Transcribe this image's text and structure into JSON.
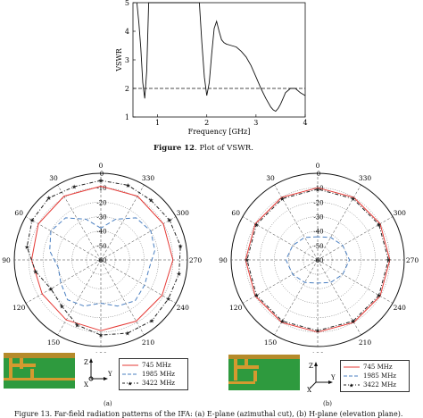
{
  "fig12": {
    "caption_label": "Figure 12",
    "caption_text": ". Plot of VSWR.",
    "chart_data": {
      "type": "line",
      "xlabel": "Frequency [GHz]",
      "ylabel": "VSWR",
      "xlim": [
        0.5,
        4
      ],
      "ylim": [
        1,
        5
      ],
      "xticks": [
        "1",
        "2",
        "3",
        "4"
      ],
      "yticks": [
        "1",
        "2",
        "3",
        "4",
        "5"
      ],
      "reference_line": {
        "y": 2,
        "style": "dashed"
      },
      "series": [
        {
          "x": [
            0.58,
            0.62,
            0.66,
            0.7,
            0.74,
            0.78,
            0.82,
            0.86,
            0.9,
            0.95,
            1.0,
            1.1,
            1.2,
            1.3,
            1.4,
            1.5,
            1.6,
            1.7,
            1.8,
            1.85,
            1.9,
            1.95,
            2.0,
            2.05,
            2.1,
            2.15,
            2.2,
            2.25,
            2.3,
            2.35,
            2.4,
            2.5,
            2.6,
            2.7,
            2.8,
            2.9,
            3.0,
            3.1,
            3.2,
            3.3,
            3.35,
            3.4,
            3.45,
            3.5,
            3.55,
            3.6,
            3.7,
            3.8,
            3.9,
            4.0
          ],
          "y": [
            5.0,
            4.3,
            3.4,
            2.2,
            1.65,
            2.6,
            5.0,
            5.0,
            5.0,
            5.0,
            5.0,
            5.0,
            5.0,
            5.0,
            5.0,
            5.0,
            5.0,
            5.0,
            5.0,
            5.0,
            3.6,
            2.4,
            1.75,
            2.2,
            3.2,
            4.1,
            4.35,
            4.0,
            3.7,
            3.6,
            3.55,
            3.5,
            3.45,
            3.3,
            3.1,
            2.8,
            2.4,
            2.0,
            1.65,
            1.35,
            1.25,
            1.2,
            1.3,
            1.45,
            1.65,
            1.85,
            2.0,
            2.0,
            1.85,
            1.75
          ]
        }
      ]
    }
  },
  "fig13": {
    "caption": "Figure 13. Far-field radiation patterns of the IFA: (a) E-plane (azimuthal cut), (b) H-plane (elevation plane).",
    "panels": [
      {
        "label": "(a)",
        "chart_data": {
          "type": "line",
          "subtype": "polar",
          "angle_labels": [
            "0",
            "30",
            "60",
            "90",
            "120",
            "150",
            "180",
            "210",
            "240",
            "270",
            "300",
            "330"
          ],
          "radial_labels": [
            "0",
            "-10",
            "-20",
            "-30",
            "-40",
            "-50",
            "-60"
          ],
          "radial_range_db": [
            -60,
            0
          ],
          "series": [
            {
              "name": "745 MHz",
              "color": "#e53935",
              "style": "solid",
              "angles": [
                0,
                30,
                60,
                90,
                120,
                150,
                180,
                210,
                240,
                270,
                300,
                330
              ],
              "values_db": [
                -9,
                -9,
                -10,
                -12,
                -13,
                -12,
                -11,
                -11,
                -11,
                -10,
                -10,
                -9
              ]
            },
            {
              "name": "1985 MHz",
              "color": "#4a7fc1",
              "style": "dashed",
              "angles": [
                0,
                20,
                40,
                60,
                80,
                100,
                120,
                140,
                160,
                180,
                200,
                220,
                240,
                260,
                280,
                300,
                320,
                340
              ],
              "values_db": [
                -38,
                -30,
                -22,
                -20,
                -24,
                -30,
                -28,
                -24,
                -26,
                -30,
                -26,
                -23,
                -25,
                -26,
                -22,
                -20,
                -22,
                -30
              ]
            },
            {
              "name": "3422 MHz",
              "color": "#222222",
              "style": "dash-dot",
              "marker": "star",
              "angles": [
                0,
                20,
                40,
                60,
                80,
                100,
                120,
                140,
                160,
                180,
                200,
                220,
                240,
                260,
                280,
                300,
                320,
                340
              ],
              "values_db": [
                -5,
                -6,
                -4,
                -5,
                -8,
                -14,
                -20,
                -18,
                -12,
                -8,
                -6,
                -5,
                -6,
                -5,
                -4,
                -5,
                -6,
                -5
              ]
            }
          ]
        },
        "legend": [
          "745 MHz",
          "1985 MHz",
          "3422 MHz"
        ],
        "axes_icon": {
          "z": "Z",
          "y": "Y",
          "x": "X"
        }
      },
      {
        "label": "(b)",
        "chart_data": {
          "type": "line",
          "subtype": "polar",
          "angle_labels": [
            "0",
            "30",
            "60",
            "90",
            "120",
            "150",
            "180",
            "210",
            "240",
            "270",
            "300",
            "330"
          ],
          "radial_labels": [
            "0",
            "-10",
            "-20",
            "-30",
            "-40",
            "-50",
            "-60"
          ],
          "radial_range_db": [
            -60,
            0
          ],
          "series": [
            {
              "name": "745 MHz",
              "color": "#e53935",
              "style": "solid",
              "angles": [
                0,
                30,
                60,
                90,
                120,
                150,
                180,
                210,
                240,
                270,
                300,
                330
              ],
              "values_db": [
                -10,
                -10,
                -10,
                -10,
                -10,
                -10,
                -10,
                -10,
                -10,
                -10,
                -10,
                -10
              ]
            },
            {
              "name": "1985 MHz",
              "color": "#4a7fc1",
              "style": "dashed",
              "angles": [
                0,
                30,
                60,
                90,
                120,
                150,
                180,
                210,
                240,
                270,
                300,
                330
              ],
              "values_db": [
                -44,
                -42,
                -40,
                -38,
                -40,
                -42,
                -44,
                -42,
                -40,
                -38,
                -40,
                -42
              ]
            },
            {
              "name": "3422 MHz",
              "color": "#222222",
              "style": "dash-dot",
              "marker": "star",
              "angles": [
                0,
                30,
                60,
                90,
                120,
                150,
                180,
                210,
                240,
                270,
                300,
                330
              ],
              "values_db": [
                -11,
                -11,
                -11,
                -11,
                -11,
                -11,
                -11,
                -11,
                -11,
                -11,
                -11,
                -11
              ]
            }
          ]
        },
        "legend": [
          "745 MHz",
          "1985 MHz",
          "3422 MHz"
        ],
        "axes_icon": {
          "z": "Z",
          "y": "Y",
          "x": "X"
        }
      }
    ]
  }
}
